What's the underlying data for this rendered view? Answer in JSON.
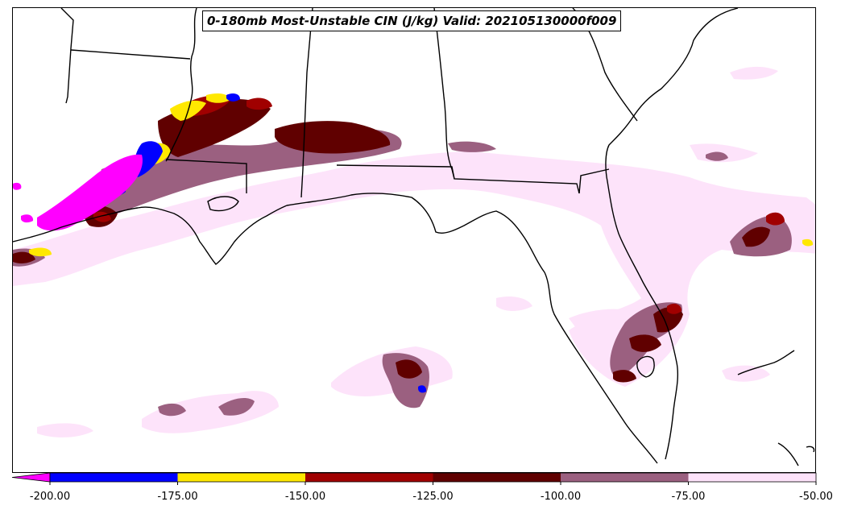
{
  "title": "0-180mb Most-Unstable CIN (J/kg) Valid: 202105130000f009",
  "colorbar": {
    "tick_labels": [
      "-200.00",
      "-175.00",
      "-150.00",
      "-125.00",
      "-100.00",
      "-75.00",
      "-50.00"
    ],
    "levels": [
      {
        "range": [
          -225,
          -200
        ],
        "color": "#ff00ff"
      },
      {
        "range": [
          -200,
          -175
        ],
        "color": "#0000ff"
      },
      {
        "range": [
          -175,
          -150
        ],
        "color": "#ffe800"
      },
      {
        "range": [
          -150,
          -125
        ],
        "color": "#a00000"
      },
      {
        "range": [
          -125,
          -100
        ],
        "color": "#600000"
      },
      {
        "range": [
          -100,
          -75
        ],
        "color": "#9b6080"
      },
      {
        "range": [
          -75,
          -50
        ],
        "color": "#fde3fa"
      }
    ],
    "extend": "min"
  },
  "colors": {
    "pink": "#fde3fa",
    "mauve": "#9b6080",
    "darkred": "#600000",
    "red": "#a00000",
    "yellow": "#ffe800",
    "blue": "#0000ff",
    "magenta": "#ff00ff",
    "coast": "#000000"
  }
}
